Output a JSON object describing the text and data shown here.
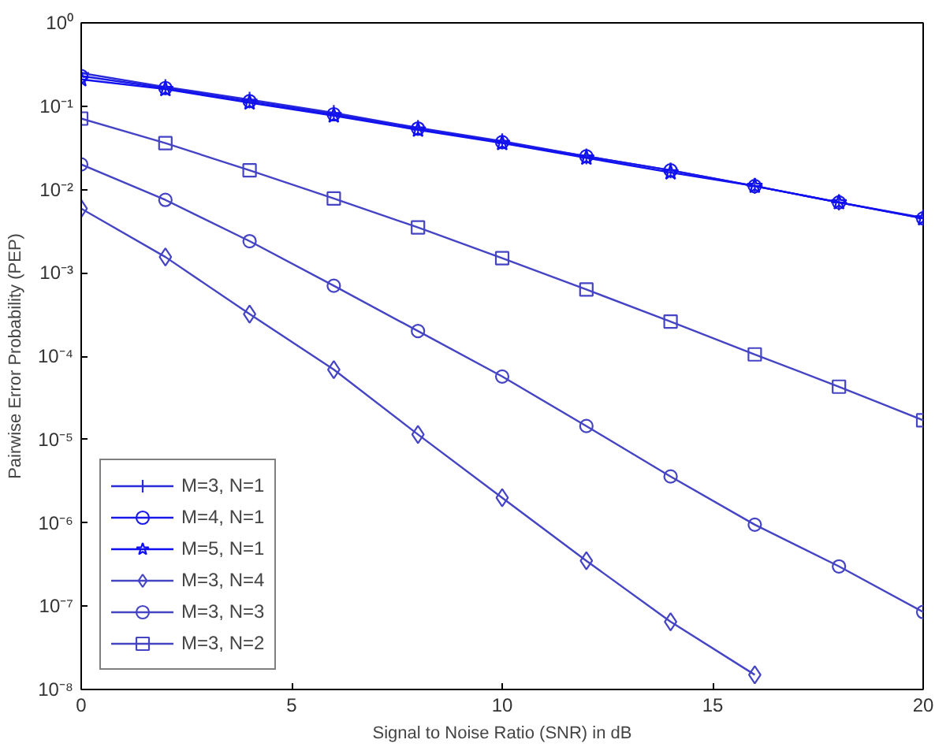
{
  "chart_data": {
    "type": "line",
    "xlabel": "Signal to Noise Ratio (SNR) in dB",
    "ylabel": "Pairwise Error Probability (PEP)",
    "log": "y",
    "grid": false,
    "legend": "bottom left",
    "xlim": [
      0,
      20
    ],
    "xticks": [
      0,
      5,
      10,
      15,
      20
    ],
    "ylim": [
      1e-08,
      1
    ],
    "yticks": [
      {
        "value": 1e-08,
        "label": "10⁻⁸"
      },
      {
        "value": 1e-07,
        "label": "10⁻⁷"
      },
      {
        "value": 1e-06,
        "label": "10⁻⁶"
      },
      {
        "value": 1e-05,
        "label": "10⁻⁵"
      },
      {
        "value": 0.0001,
        "label": "10⁻⁴"
      },
      {
        "value": 0.001,
        "label": "10⁻³"
      },
      {
        "value": 0.01,
        "label": "10⁻²"
      },
      {
        "value": 0.1,
        "label": "10⁻¹"
      },
      {
        "value": 1,
        "label": "10⁰"
      }
    ],
    "x": [
      0,
      2,
      4,
      6,
      8,
      10,
      12,
      14,
      16,
      18,
      20
    ],
    "series": [
      {
        "name": "M=3, N=1",
        "color": "#2a2ad8",
        "marker": "cross",
        "values": [
          0.25,
          0.17,
          0.12,
          0.083,
          0.055,
          0.038,
          0.025,
          0.017,
          0.011,
          0.007,
          0.0046
        ]
      },
      {
        "name": "M=4, N=1",
        "color": "#1a1ae8",
        "marker": "circle",
        "values": [
          0.23,
          0.165,
          0.115,
          0.08,
          0.054,
          0.037,
          0.025,
          0.017,
          0.011,
          0.007,
          0.0045
        ]
      },
      {
        "name": "M=5, N=1",
        "color": "#1010f0",
        "marker": "star",
        "values": [
          0.21,
          0.16,
          0.11,
          0.077,
          0.052,
          0.036,
          0.024,
          0.016,
          0.011,
          0.007,
          0.0045
        ]
      },
      {
        "name": "M=3, N=4",
        "color": "#4444c4",
        "marker": "diamond",
        "values": [
          0.0059,
          0.00155,
          0.00032,
          6.9e-05,
          1.15e-05,
          2e-06,
          3.5e-07,
          6.5e-08,
          1.5e-08,
          null,
          null
        ]
      },
      {
        "name": "M=3, N=3",
        "color": "#4444c4",
        "marker": "circle",
        "values": [
          0.02,
          0.0075,
          0.0024,
          0.0007,
          0.0002,
          5.7e-05,
          1.45e-05,
          3.6e-06,
          9.5e-07,
          3e-07,
          8.5e-08
        ]
      },
      {
        "name": "M=3, N=2",
        "color": "#4444c4",
        "marker": "square",
        "values": [
          0.071,
          0.036,
          0.017,
          0.0078,
          0.0035,
          0.0015,
          0.00063,
          0.00026,
          0.000105,
          4.3e-05,
          1.7e-05
        ]
      }
    ]
  }
}
